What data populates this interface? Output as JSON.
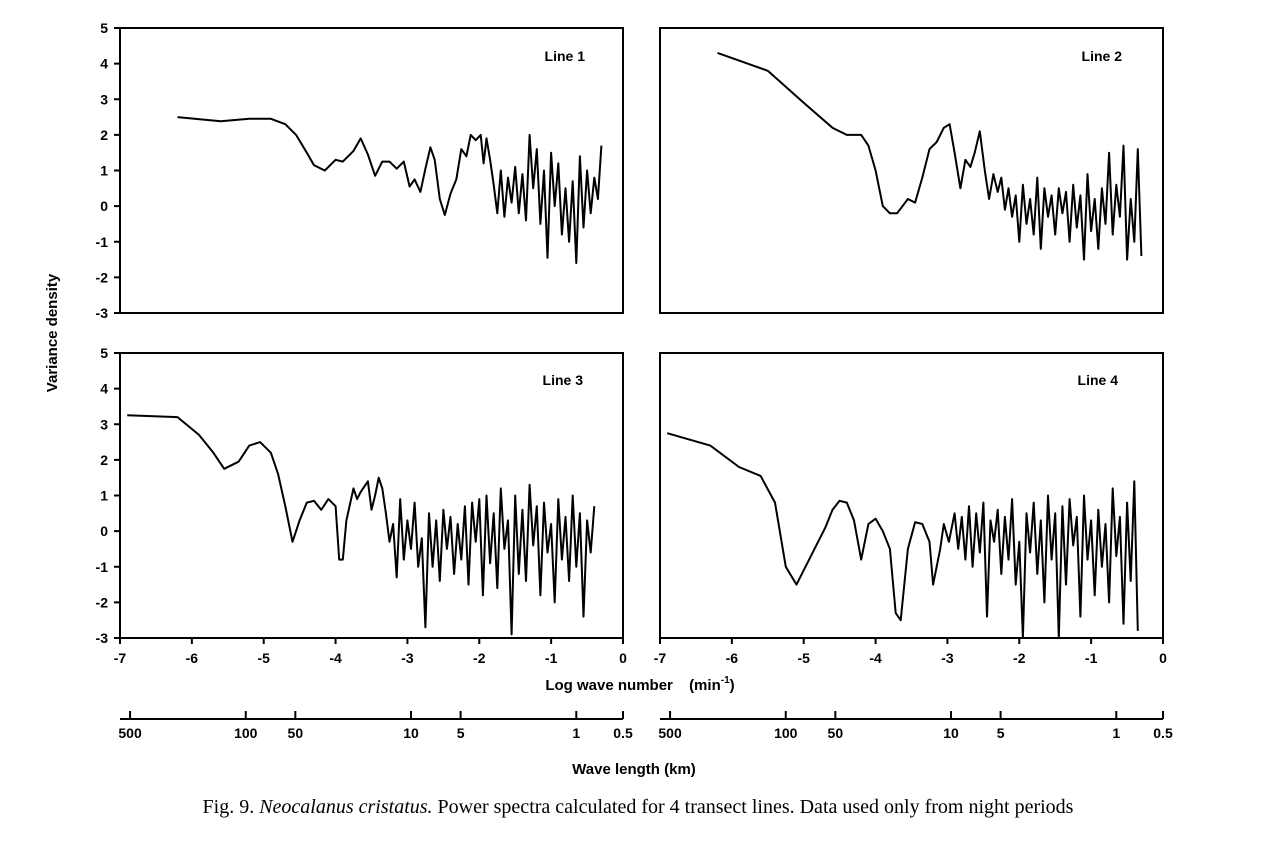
{
  "caption": {
    "prefix": "Fig. 9.",
    "species": "Neocalanus cristatus.",
    "text": "Power spectra calculated for 4 transect lines. Data used only from night periods"
  },
  "chart_data": {
    "type": "line",
    "ylabel": "Variance density",
    "xlabel": "Log wave number",
    "xlabel_unit": "(min",
    "xlabel_unit_exp": "-1",
    "xlabel_unit_close": ")",
    "secondary_xlabel": "Wave length  (km)",
    "xlim": [
      -7,
      0
    ],
    "ylim": [
      -3,
      5
    ],
    "xticks": [
      "-7",
      "-6",
      "-5",
      "-4",
      "-3",
      "-2",
      "-1",
      "0"
    ],
    "yticks": [
      "-3",
      "-2",
      "-1",
      "0",
      "1",
      "2",
      "3",
      "4",
      "5"
    ],
    "wavelength_ticks": [
      {
        "label": "500",
        "x": -6.86
      },
      {
        "label": "100",
        "x": -5.25
      },
      {
        "label": "50",
        "x": -4.56
      },
      {
        "label": "10",
        "x": -2.95
      },
      {
        "label": "5",
        "x": -2.26
      },
      {
        "label": "1",
        "x": -0.65
      },
      {
        "label": "0.5",
        "x": 0.0
      }
    ],
    "panels": [
      {
        "name": "Line 1",
        "points": [
          [
            -6.2,
            2.5
          ],
          [
            -5.6,
            2.38
          ],
          [
            -5.2,
            2.45
          ],
          [
            -4.9,
            2.45
          ],
          [
            -4.7,
            2.3
          ],
          [
            -4.55,
            2.0
          ],
          [
            -4.4,
            1.5
          ],
          [
            -4.3,
            1.15
          ],
          [
            -4.15,
            1.0
          ],
          [
            -4.0,
            1.3
          ],
          [
            -3.9,
            1.25
          ],
          [
            -3.75,
            1.55
          ],
          [
            -3.65,
            1.9
          ],
          [
            -3.55,
            1.45
          ],
          [
            -3.45,
            0.85
          ],
          [
            -3.35,
            1.25
          ],
          [
            -3.25,
            1.25
          ],
          [
            -3.15,
            1.05
          ],
          [
            -3.05,
            1.25
          ],
          [
            -2.97,
            0.55
          ],
          [
            -2.9,
            0.75
          ],
          [
            -2.82,
            0.4
          ],
          [
            -2.75,
            1.05
          ],
          [
            -2.68,
            1.65
          ],
          [
            -2.62,
            1.3
          ],
          [
            -2.55,
            0.2
          ],
          [
            -2.48,
            -0.25
          ],
          [
            -2.4,
            0.35
          ],
          [
            -2.32,
            0.75
          ],
          [
            -2.25,
            1.6
          ],
          [
            -2.18,
            1.4
          ],
          [
            -2.12,
            2.0
          ],
          [
            -2.05,
            1.85
          ],
          [
            -1.98,
            2.0
          ],
          [
            -1.94,
            1.2
          ],
          [
            -1.9,
            1.9
          ],
          [
            -1.85,
            1.3
          ],
          [
            -1.8,
            0.6
          ],
          [
            -1.75,
            -0.2
          ],
          [
            -1.7,
            1.0
          ],
          [
            -1.65,
            -0.3
          ],
          [
            -1.6,
            0.8
          ],
          [
            -1.55,
            0.1
          ],
          [
            -1.5,
            1.1
          ],
          [
            -1.45,
            -0.2
          ],
          [
            -1.4,
            0.9
          ],
          [
            -1.35,
            -0.4
          ],
          [
            -1.3,
            2.0
          ],
          [
            -1.25,
            0.5
          ],
          [
            -1.2,
            1.6
          ],
          [
            -1.15,
            -0.5
          ],
          [
            -1.1,
            1.0
          ],
          [
            -1.05,
            -1.45
          ],
          [
            -1.0,
            1.5
          ],
          [
            -0.95,
            0.0
          ],
          [
            -0.9,
            1.2
          ],
          [
            -0.85,
            -0.8
          ],
          [
            -0.8,
            0.5
          ],
          [
            -0.75,
            -1.0
          ],
          [
            -0.7,
            0.7
          ],
          [
            -0.65,
            -1.6
          ],
          [
            -0.6,
            1.4
          ],
          [
            -0.55,
            -0.6
          ],
          [
            -0.5,
            1.0
          ],
          [
            -0.45,
            -0.2
          ],
          [
            -0.4,
            0.8
          ],
          [
            -0.35,
            0.2
          ],
          [
            -0.3,
            1.7
          ]
        ]
      },
      {
        "name": "Line 2",
        "points": [
          [
            -6.2,
            4.3
          ],
          [
            -5.5,
            3.8
          ],
          [
            -5.0,
            2.9
          ],
          [
            -4.6,
            2.2
          ],
          [
            -4.4,
            2.0
          ],
          [
            -4.2,
            2.0
          ],
          [
            -4.1,
            1.7
          ],
          [
            -4.0,
            1.0
          ],
          [
            -3.9,
            0.0
          ],
          [
            -3.8,
            -0.2
          ],
          [
            -3.7,
            -0.2
          ],
          [
            -3.55,
            0.2
          ],
          [
            -3.45,
            0.1
          ],
          [
            -3.35,
            0.8
          ],
          [
            -3.25,
            1.6
          ],
          [
            -3.15,
            1.8
          ],
          [
            -3.05,
            2.2
          ],
          [
            -2.97,
            2.3
          ],
          [
            -2.9,
            1.5
          ],
          [
            -2.82,
            0.5
          ],
          [
            -2.75,
            1.3
          ],
          [
            -2.68,
            1.1
          ],
          [
            -2.62,
            1.5
          ],
          [
            -2.55,
            2.1
          ],
          [
            -2.48,
            1.0
          ],
          [
            -2.42,
            0.2
          ],
          [
            -2.36,
            0.9
          ],
          [
            -2.3,
            0.4
          ],
          [
            -2.25,
            0.8
          ],
          [
            -2.2,
            -0.1
          ],
          [
            -2.15,
            0.5
          ],
          [
            -2.1,
            -0.3
          ],
          [
            -2.05,
            0.3
          ],
          [
            -2.0,
            -1.0
          ],
          [
            -1.95,
            0.6
          ],
          [
            -1.9,
            -0.5
          ],
          [
            -1.85,
            0.2
          ],
          [
            -1.8,
            -0.8
          ],
          [
            -1.75,
            0.8
          ],
          [
            -1.7,
            -1.2
          ],
          [
            -1.65,
            0.5
          ],
          [
            -1.6,
            -0.3
          ],
          [
            -1.55,
            0.3
          ],
          [
            -1.5,
            -0.8
          ],
          [
            -1.45,
            0.5
          ],
          [
            -1.4,
            -0.2
          ],
          [
            -1.35,
            0.4
          ],
          [
            -1.3,
            -1.0
          ],
          [
            -1.25,
            0.6
          ],
          [
            -1.2,
            -0.6
          ],
          [
            -1.15,
            0.3
          ],
          [
            -1.1,
            -1.5
          ],
          [
            -1.05,
            0.9
          ],
          [
            -1.0,
            -0.7
          ],
          [
            -0.95,
            0.2
          ],
          [
            -0.9,
            -1.2
          ],
          [
            -0.85,
            0.5
          ],
          [
            -0.8,
            -0.5
          ],
          [
            -0.75,
            1.5
          ],
          [
            -0.7,
            -0.8
          ],
          [
            -0.65,
            0.6
          ],
          [
            -0.6,
            -0.3
          ],
          [
            -0.55,
            1.7
          ],
          [
            -0.5,
            -1.5
          ],
          [
            -0.45,
            0.2
          ],
          [
            -0.4,
            -1.0
          ],
          [
            -0.35,
            1.6
          ],
          [
            -0.3,
            -1.4
          ]
        ]
      },
      {
        "name": "Line 3",
        "points": [
          [
            -6.9,
            3.25
          ],
          [
            -6.2,
            3.2
          ],
          [
            -5.9,
            2.7
          ],
          [
            -5.7,
            2.2
          ],
          [
            -5.55,
            1.75
          ],
          [
            -5.35,
            1.95
          ],
          [
            -5.2,
            2.4
          ],
          [
            -5.05,
            2.5
          ],
          [
            -4.9,
            2.2
          ],
          [
            -4.8,
            1.6
          ],
          [
            -4.7,
            0.7
          ],
          [
            -4.6,
            -0.3
          ],
          [
            -4.5,
            0.3
          ],
          [
            -4.4,
            0.8
          ],
          [
            -4.3,
            0.85
          ],
          [
            -4.2,
            0.6
          ],
          [
            -4.1,
            0.9
          ],
          [
            -4.0,
            0.7
          ],
          [
            -3.95,
            -0.8
          ],
          [
            -3.9,
            -0.8
          ],
          [
            -3.85,
            0.3
          ],
          [
            -3.75,
            1.2
          ],
          [
            -3.7,
            0.9
          ],
          [
            -3.65,
            1.1
          ],
          [
            -3.55,
            1.4
          ],
          [
            -3.5,
            0.6
          ],
          [
            -3.45,
            1.0
          ],
          [
            -3.4,
            1.5
          ],
          [
            -3.35,
            1.2
          ],
          [
            -3.3,
            0.5
          ],
          [
            -3.25,
            -0.3
          ],
          [
            -3.2,
            0.2
          ],
          [
            -3.15,
            -1.3
          ],
          [
            -3.1,
            0.9
          ],
          [
            -3.05,
            -0.8
          ],
          [
            -3.0,
            0.3
          ],
          [
            -2.95,
            -0.5
          ],
          [
            -2.9,
            0.8
          ],
          [
            -2.85,
            -1.0
          ],
          [
            -2.8,
            -0.2
          ],
          [
            -2.75,
            -2.7
          ],
          [
            -2.7,
            0.5
          ],
          [
            -2.65,
            -1.0
          ],
          [
            -2.6,
            0.3
          ],
          [
            -2.55,
            -1.4
          ],
          [
            -2.5,
            0.6
          ],
          [
            -2.45,
            -0.5
          ],
          [
            -2.4,
            0.4
          ],
          [
            -2.35,
            -1.2
          ],
          [
            -2.3,
            0.2
          ],
          [
            -2.25,
            -0.8
          ],
          [
            -2.2,
            0.7
          ],
          [
            -2.15,
            -1.5
          ],
          [
            -2.1,
            0.8
          ],
          [
            -2.05,
            -0.3
          ],
          [
            -2.0,
            0.9
          ],
          [
            -1.95,
            -1.8
          ],
          [
            -1.9,
            1.0
          ],
          [
            -1.85,
            -0.9
          ],
          [
            -1.8,
            0.5
          ],
          [
            -1.75,
            -1.6
          ],
          [
            -1.7,
            1.2
          ],
          [
            -1.65,
            -0.5
          ],
          [
            -1.6,
            0.3
          ],
          [
            -1.55,
            -2.9
          ],
          [
            -1.5,
            1.0
          ],
          [
            -1.45,
            -1.2
          ],
          [
            -1.4,
            0.6
          ],
          [
            -1.35,
            -1.4
          ],
          [
            -1.3,
            1.3
          ],
          [
            -1.25,
            -0.4
          ],
          [
            -1.2,
            0.7
          ],
          [
            -1.15,
            -1.8
          ],
          [
            -1.1,
            0.8
          ],
          [
            -1.05,
            -0.6
          ],
          [
            -1.0,
            0.2
          ],
          [
            -0.95,
            -2.0
          ],
          [
            -0.9,
            0.9
          ],
          [
            -0.85,
            -0.8
          ],
          [
            -0.8,
            0.4
          ],
          [
            -0.75,
            -1.4
          ],
          [
            -0.7,
            1.0
          ],
          [
            -0.65,
            -1.0
          ],
          [
            -0.6,
            0.5
          ],
          [
            -0.55,
            -2.4
          ],
          [
            -0.5,
            0.3
          ],
          [
            -0.45,
            -0.6
          ],
          [
            -0.4,
            0.7
          ]
        ]
      },
      {
        "name": "Line 4",
        "points": [
          [
            -6.9,
            2.75
          ],
          [
            -6.3,
            2.4
          ],
          [
            -5.9,
            1.8
          ],
          [
            -5.6,
            1.55
          ],
          [
            -5.4,
            0.8
          ],
          [
            -5.25,
            -1.0
          ],
          [
            -5.1,
            -1.5
          ],
          [
            -4.95,
            -0.9
          ],
          [
            -4.8,
            -0.3
          ],
          [
            -4.7,
            0.1
          ],
          [
            -4.6,
            0.6
          ],
          [
            -4.5,
            0.85
          ],
          [
            -4.4,
            0.8
          ],
          [
            -4.3,
            0.3
          ],
          [
            -4.2,
            -0.8
          ],
          [
            -4.1,
            0.2
          ],
          [
            -4.0,
            0.35
          ],
          [
            -3.9,
            0.0
          ],
          [
            -3.8,
            -0.5
          ],
          [
            -3.72,
            -2.3
          ],
          [
            -3.65,
            -2.5
          ],
          [
            -3.55,
            -0.5
          ],
          [
            -3.45,
            0.25
          ],
          [
            -3.35,
            0.2
          ],
          [
            -3.25,
            -0.3
          ],
          [
            -3.2,
            -1.5
          ],
          [
            -3.1,
            -0.5
          ],
          [
            -3.05,
            0.2
          ],
          [
            -2.98,
            -0.3
          ],
          [
            -2.9,
            0.5
          ],
          [
            -2.85,
            -0.5
          ],
          [
            -2.8,
            0.4
          ],
          [
            -2.75,
            -0.8
          ],
          [
            -2.7,
            0.7
          ],
          [
            -2.65,
            -1.0
          ],
          [
            -2.6,
            0.5
          ],
          [
            -2.55,
            -0.6
          ],
          [
            -2.5,
            0.8
          ],
          [
            -2.45,
            -2.4
          ],
          [
            -2.4,
            0.3
          ],
          [
            -2.35,
            -0.3
          ],
          [
            -2.3,
            0.6
          ],
          [
            -2.25,
            -1.2
          ],
          [
            -2.2,
            0.4
          ],
          [
            -2.15,
            -0.8
          ],
          [
            -2.1,
            0.9
          ],
          [
            -2.05,
            -1.5
          ],
          [
            -2.0,
            -0.3
          ],
          [
            -1.95,
            -3.0
          ],
          [
            -1.9,
            0.5
          ],
          [
            -1.85,
            -0.6
          ],
          [
            -1.8,
            0.8
          ],
          [
            -1.75,
            -1.2
          ],
          [
            -1.7,
            0.3
          ],
          [
            -1.65,
            -2.0
          ],
          [
            -1.6,
            1.0
          ],
          [
            -1.55,
            -0.8
          ],
          [
            -1.5,
            0.5
          ],
          [
            -1.45,
            -3.0
          ],
          [
            -1.4,
            0.7
          ],
          [
            -1.35,
            -1.5
          ],
          [
            -1.3,
            0.9
          ],
          [
            -1.25,
            -0.4
          ],
          [
            -1.2,
            0.4
          ],
          [
            -1.15,
            -2.4
          ],
          [
            -1.1,
            1.0
          ],
          [
            -1.05,
            -0.8
          ],
          [
            -1.0,
            0.3
          ],
          [
            -0.95,
            -1.8
          ],
          [
            -0.9,
            0.6
          ],
          [
            -0.85,
            -1.0
          ],
          [
            -0.8,
            0.2
          ],
          [
            -0.75,
            -2.0
          ],
          [
            -0.7,
            1.2
          ],
          [
            -0.65,
            -0.7
          ],
          [
            -0.6,
            0.4
          ],
          [
            -0.55,
            -2.6
          ],
          [
            -0.5,
            0.8
          ],
          [
            -0.45,
            -1.4
          ],
          [
            -0.4,
            1.4
          ],
          [
            -0.35,
            -2.8
          ]
        ]
      }
    ]
  }
}
